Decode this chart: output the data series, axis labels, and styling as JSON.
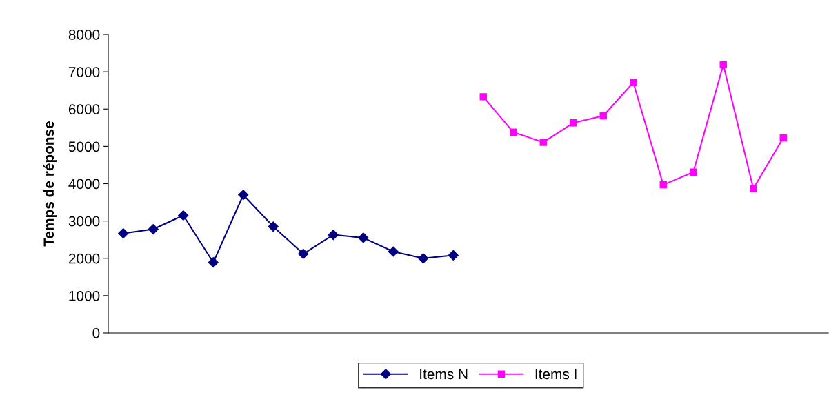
{
  "chart_data": {
    "type": "line",
    "ylabel": "Temps de réponse",
    "categories": [
      null,
      null,
      null,
      null,
      null,
      null,
      null,
      null,
      null,
      null,
      null,
      null,
      null,
      null,
      null,
      null,
      null,
      null,
      null,
      null,
      null,
      null,
      null,
      null
    ],
    "series": [
      {
        "name": "Items N",
        "color": "#000080",
        "marker": "diamond",
        "values": [
          2670,
          2780,
          3150,
          1890,
          3700,
          2850,
          2120,
          2630,
          2550,
          2180,
          2000,
          2080,
          null,
          null,
          null,
          null,
          null,
          null,
          null,
          null,
          null,
          null,
          null,
          null
        ]
      },
      {
        "name": "Items I",
        "color": "#ff00ff",
        "marker": "square",
        "values": [
          null,
          null,
          null,
          null,
          null,
          null,
          null,
          null,
          null,
          null,
          null,
          null,
          6330,
          5380,
          5110,
          5630,
          5820,
          6710,
          3970,
          4310,
          7190,
          3870,
          5230,
          null
        ]
      }
    ],
    "ylim": [
      0,
      8000
    ],
    "yticks": [
      0,
      1000,
      2000,
      3000,
      4000,
      5000,
      6000,
      7000,
      8000
    ],
    "grid": false,
    "legend": "bottom",
    "line_style": "solid"
  }
}
